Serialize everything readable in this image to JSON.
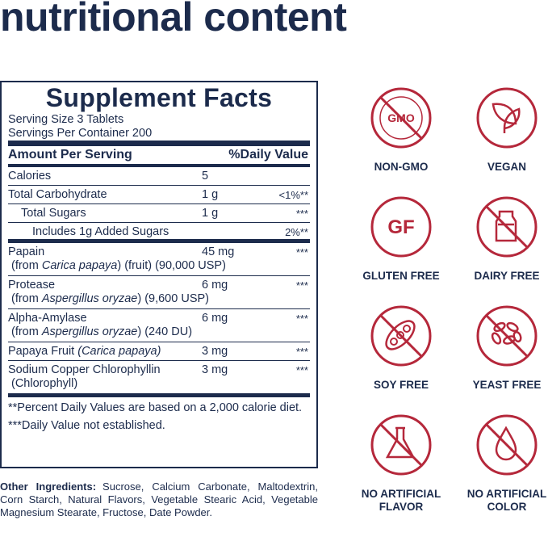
{
  "header": {
    "title": "nutritional content"
  },
  "facts": {
    "title": "Supplement Facts",
    "serving_size": "Serving Size 3 Tablets",
    "servings_per_container": "Servings Per Container 200",
    "column_amount": "Amount Per Serving",
    "column_dv": "%Daily Value",
    "rows": [
      {
        "name": "Calories",
        "amount": "5"
      },
      {
        "name": "Total Carbohydrate",
        "amount": "1 g",
        "dv": "<1%**"
      },
      {
        "name": "Total Sugars",
        "amount": "1 g",
        "dv": "***"
      },
      {
        "name": "Includes 1g Added Sugars",
        "dv": "2%**"
      },
      {
        "name": "Papain",
        "amount": "45 mg",
        "dv": "***",
        "sub": [
          "(from ",
          "Carica papaya",
          ") (fruit) (90,000 USP)"
        ]
      },
      {
        "name": "Protease",
        "amount": "6 mg",
        "dv": "***",
        "sub": [
          "(from ",
          "Aspergillus oryzae",
          ") (9,600 USP)"
        ]
      },
      {
        "name": "Alpha-Amylase",
        "amount": "6 mg",
        "dv": "***",
        "sub": [
          "(from ",
          "Aspergillus oryzae",
          ") (240 DU)"
        ]
      },
      {
        "name": [
          "Papaya Fruit ",
          "(Carica papaya)"
        ],
        "amount": "3 mg",
        "dv": "***"
      },
      {
        "name": "Sodium Copper Chlorophyllin",
        "amount": "3 mg",
        "dv": "***",
        "sub": [
          "(Chlorophyll)"
        ]
      }
    ],
    "footnotes": [
      "**Percent Daily Values are based on a 2,000 calorie diet.",
      "***Daily Value not established."
    ]
  },
  "other_ingredients": {
    "label": "Other Ingredients:",
    "text": "Sucrose, Calcium Carbonate, Maltodextrin, Corn Starch, Natural Flavors, Vegetable Stearic Acid, Vegetable Magnesium Stearate, Fructose, Date Powder."
  },
  "badges": [
    {
      "label": "NON-GMO",
      "icon_text": "GMO"
    },
    {
      "label": "VEGAN"
    },
    {
      "label": "GLUTEN FREE",
      "icon_text": "GF"
    },
    {
      "label": "DAIRY FREE"
    },
    {
      "label": "SOY FREE"
    },
    {
      "label": "YEAST FREE"
    },
    {
      "label": "NO ARTIFICIAL FLAVOR"
    },
    {
      "label": "NO ARTIFICIAL COLOR"
    }
  ]
}
